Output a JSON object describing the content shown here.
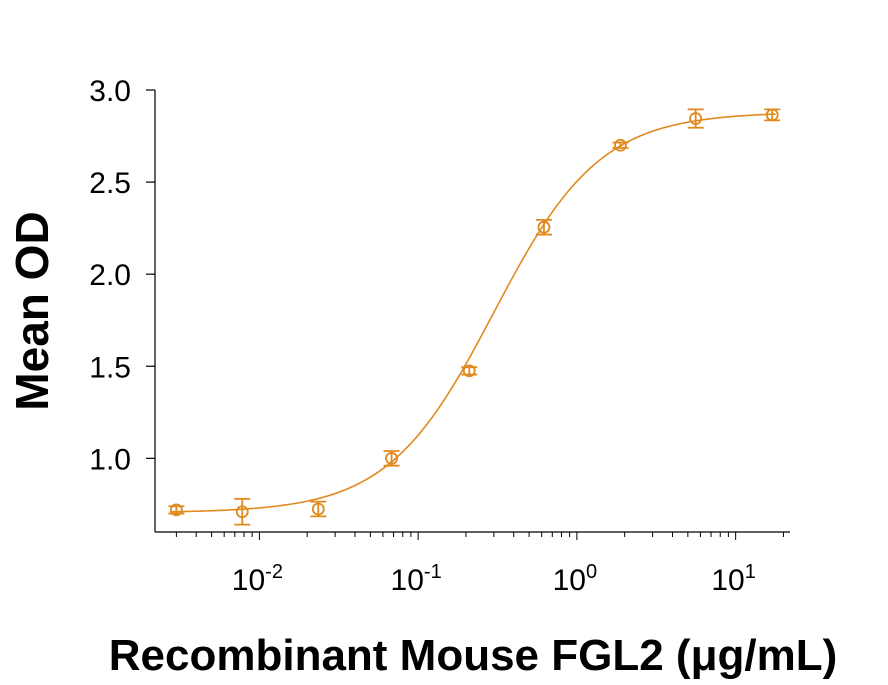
{
  "chart_data": {
    "type": "scatter",
    "title": "",
    "xlabel": "Recombinant Mouse FGL2 (μg/mL)",
    "ylabel": "Mean OD",
    "xscale": "log",
    "xlim": [
      0.0022,
      22
    ],
    "ylim": [
      0.6,
      3.0
    ],
    "grid": false,
    "color": "#E08A1E",
    "yticks": [
      {
        "value": 1.0,
        "label": "1.0"
      },
      {
        "value": 1.5,
        "label": "1.5"
      },
      {
        "value": 2.0,
        "label": "2.0"
      },
      {
        "value": 2.5,
        "label": "2.5"
      },
      {
        "value": 3.0,
        "label": "3.0"
      }
    ],
    "xticks_major": [
      {
        "value": 0.01,
        "base": "10",
        "exp": "-2"
      },
      {
        "value": 0.1,
        "base": "10",
        "exp": "-1"
      },
      {
        "value": 1,
        "base": "10",
        "exp": "0"
      },
      {
        "value": 10,
        "base": "10",
        "exp": "1"
      }
    ],
    "series": [
      {
        "name": "Mean OD",
        "x": [
          0.003,
          0.0078,
          0.0235,
          0.068,
          0.21,
          0.62,
          1.88,
          5.6,
          17
        ],
        "y": [
          0.72,
          0.71,
          0.725,
          1.0,
          1.475,
          2.255,
          2.7,
          2.845,
          2.865
        ],
        "err": [
          0.02,
          0.07,
          0.04,
          0.04,
          0.02,
          0.04,
          0.015,
          0.05,
          0.03
        ]
      }
    ],
    "fit": {
      "model": "4PL",
      "bottom": 0.705,
      "top": 2.88,
      "ec50": 0.3,
      "hill": 1.3
    }
  }
}
